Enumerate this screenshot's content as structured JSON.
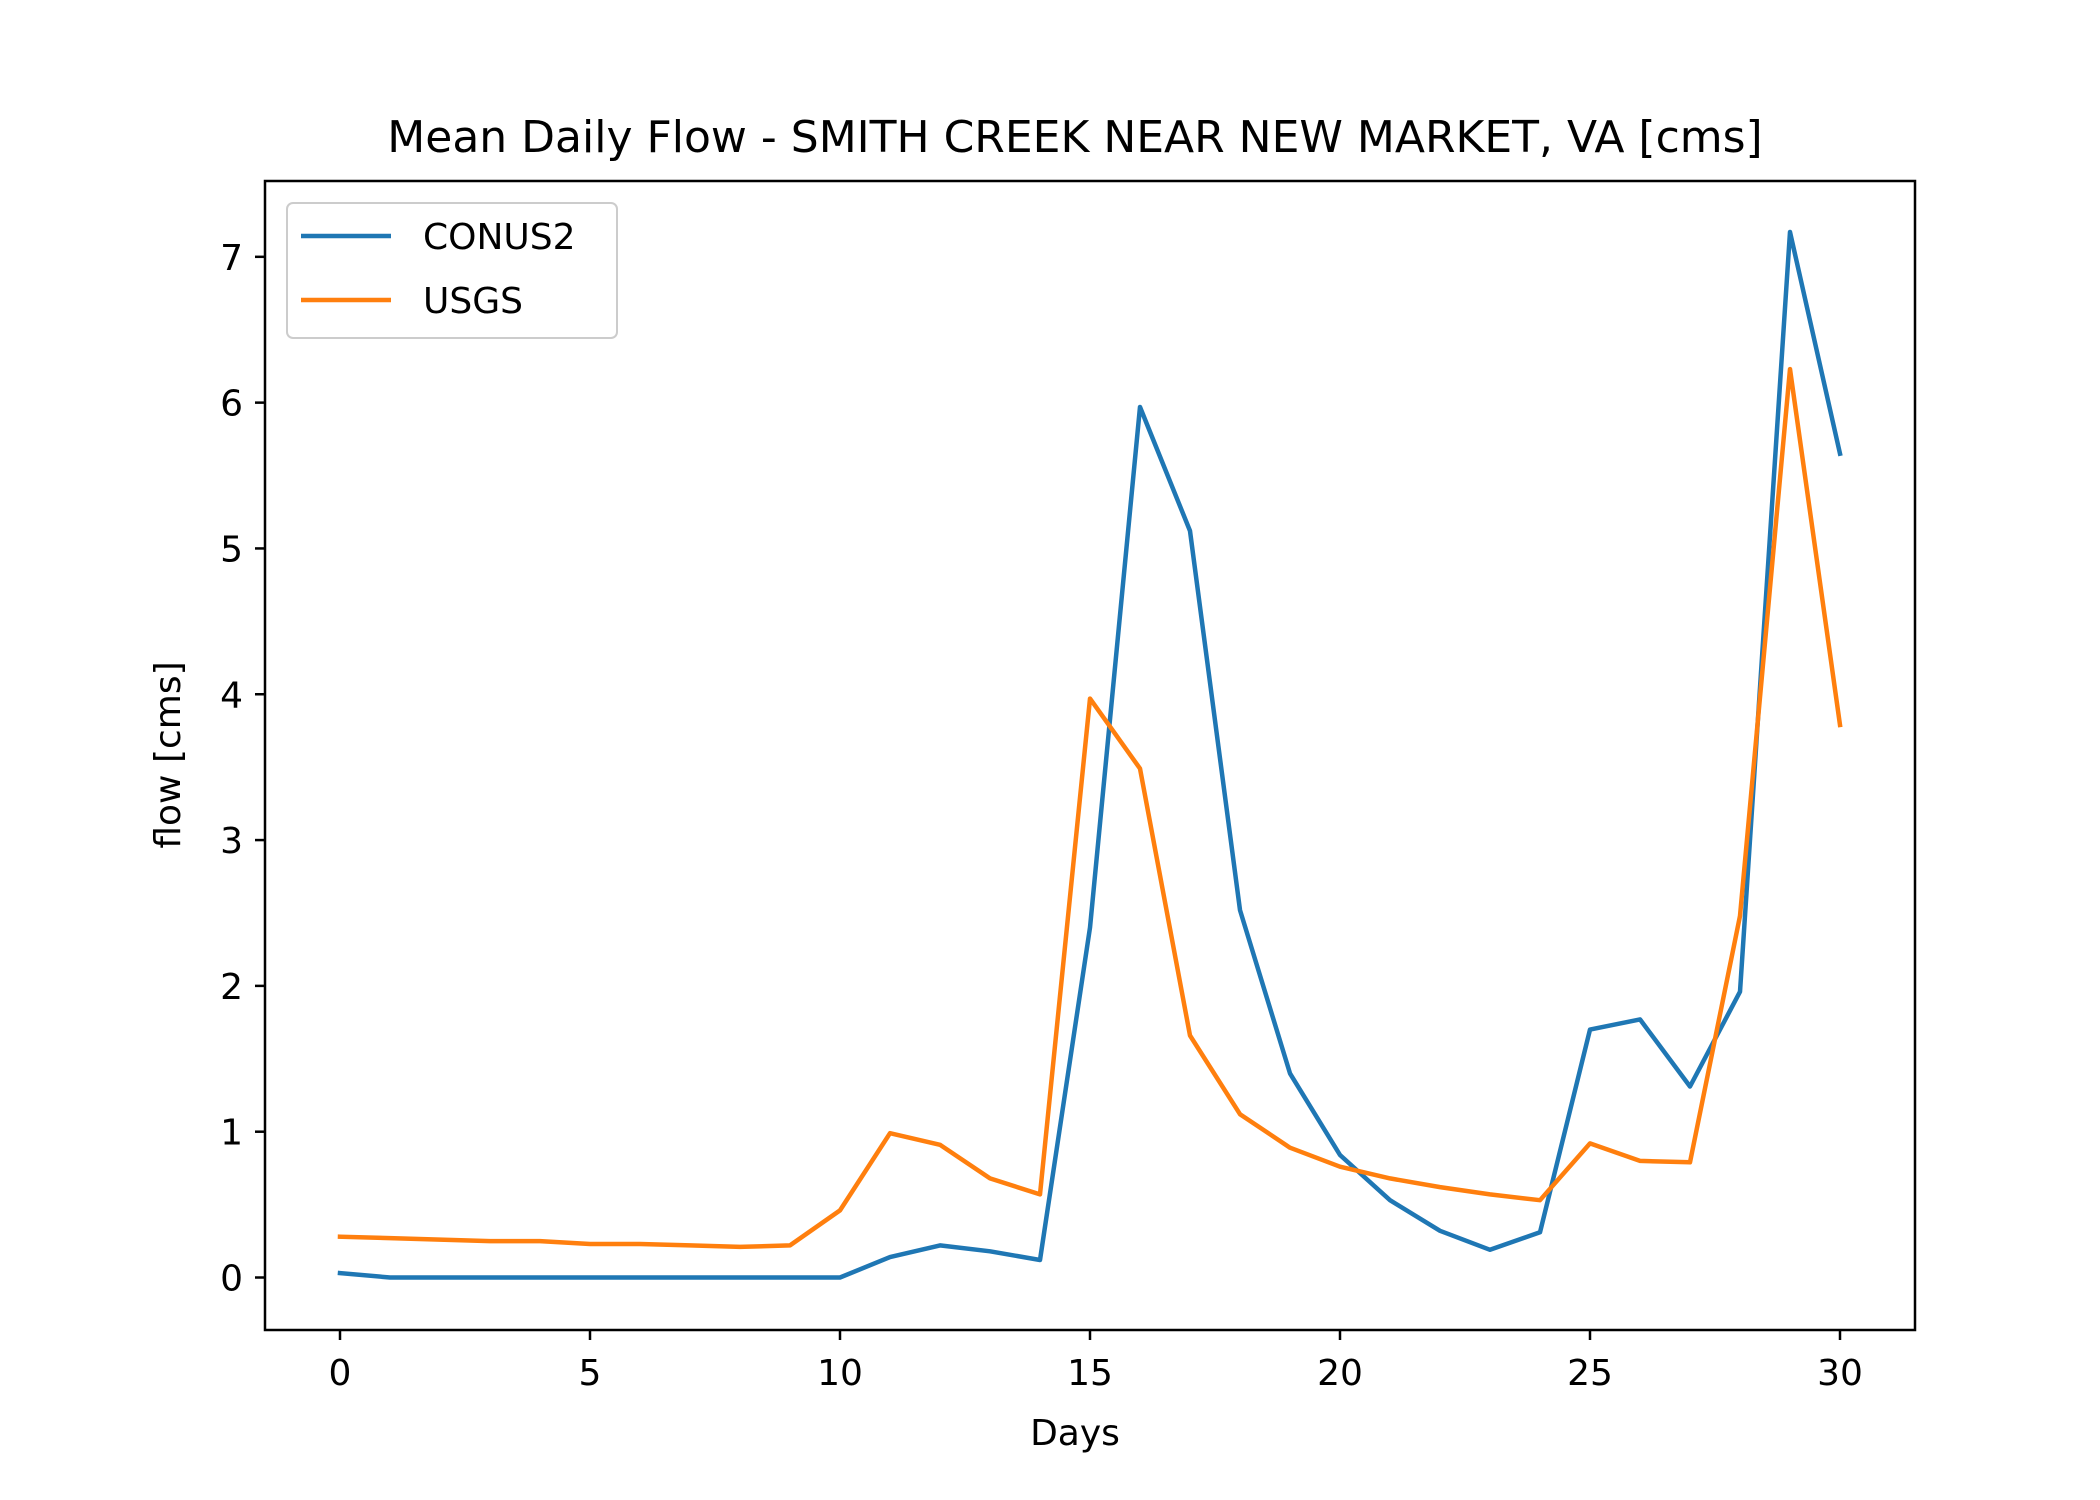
{
  "chart_data": {
    "type": "line",
    "title": "Mean Daily Flow - SMITH CREEK NEAR NEW MARKET, VA [cms]",
    "xlabel": "Days",
    "ylabel": "flow [cms]",
    "xlim": [
      -1.5,
      31.5
    ],
    "ylim": [
      -0.36,
      7.52
    ],
    "xticks": [
      0,
      5,
      10,
      15,
      20,
      25,
      30
    ],
    "yticks": [
      0,
      1,
      2,
      3,
      4,
      5,
      6,
      7
    ],
    "grid": false,
    "legend_position": "top-left",
    "x": [
      0,
      1,
      2,
      3,
      4,
      5,
      6,
      7,
      8,
      9,
      10,
      11,
      12,
      13,
      14,
      15,
      16,
      17,
      18,
      19,
      20,
      21,
      22,
      23,
      24,
      25,
      26,
      27,
      28,
      29,
      30
    ],
    "series": [
      {
        "name": "CONUS2",
        "color": "#1f77b4",
        "values": [
          0.03,
          0.0,
          0.0,
          0.0,
          0.0,
          0.0,
          0.0,
          0.0,
          0.0,
          0.0,
          0.0,
          0.14,
          0.22,
          0.18,
          0.12,
          2.4,
          5.97,
          5.12,
          2.52,
          1.4,
          0.84,
          0.53,
          0.32,
          0.19,
          0.31,
          1.7,
          1.77,
          1.31,
          1.96,
          7.17,
          5.65
        ]
      },
      {
        "name": "USGS",
        "color": "#ff7f0e",
        "values": [
          0.28,
          0.27,
          0.26,
          0.25,
          0.25,
          0.23,
          0.23,
          0.22,
          0.21,
          0.22,
          0.46,
          0.99,
          0.91,
          0.68,
          0.57,
          3.97,
          3.49,
          1.66,
          1.12,
          0.89,
          0.76,
          0.68,
          0.62,
          0.57,
          0.53,
          0.92,
          0.8,
          0.79,
          2.48,
          6.23,
          3.79
        ]
      }
    ]
  }
}
